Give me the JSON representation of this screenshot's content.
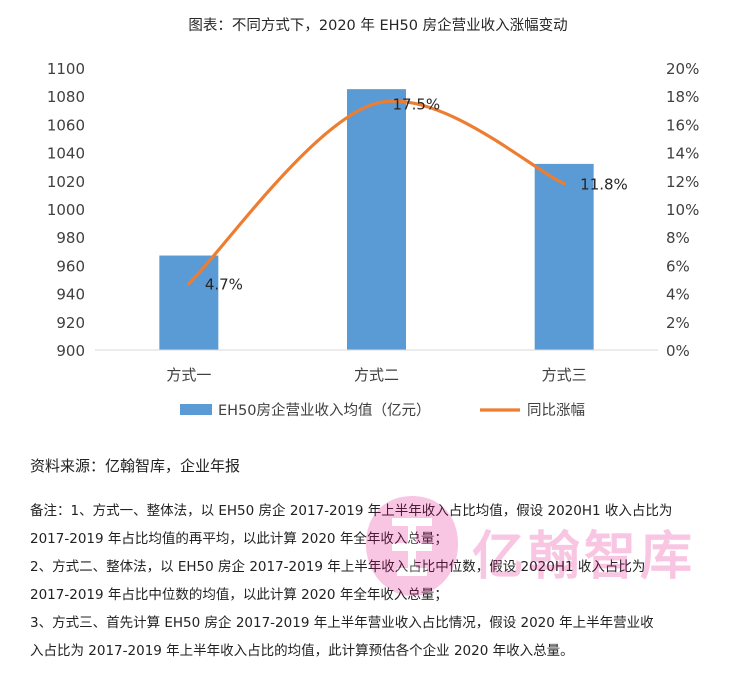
{
  "chart_data": {
    "type": "bar",
    "title": "图表：不同方式下，2020 年 EH50 房企营业收入涨幅变动",
    "categories": [
      "方式一",
      "方式二",
      "方式三"
    ],
    "series": [
      {
        "name": "EH50房企营业收入均值（亿元）",
        "type": "bar",
        "axis": "left",
        "values": [
          967,
          1085,
          1032
        ],
        "color": "#5b9bd5"
      },
      {
        "name": "同比涨幅",
        "type": "line",
        "axis": "right",
        "values": [
          4.7,
          17.5,
          11.8
        ],
        "labels": [
          "4.7%",
          "17.5%",
          "11.8%"
        ],
        "color": "#ed7d31"
      }
    ],
    "y_left": {
      "min": 900,
      "max": 1100,
      "step": 20,
      "ticks": [
        "900",
        "920",
        "940",
        "960",
        "980",
        "1000",
        "1020",
        "1040",
        "1060",
        "1080",
        "1100"
      ]
    },
    "y_right": {
      "min": 0,
      "max": 20,
      "step": 2,
      "ticks": [
        "0%",
        "2%",
        "4%",
        "6%",
        "8%",
        "10%",
        "12%",
        "14%",
        "16%",
        "18%",
        "20%"
      ]
    },
    "grid": false,
    "legend_position": "bottom"
  },
  "source": "资料来源：亿翰智库，企业年报",
  "notes": [
    "备注：1、方式一、整体法，以 EH50 房企 2017-2019 年上半年收入占比均值，假设 2020H1 收入占比为",
    "2017-2019 年占比均值的再平均，以此计算 2020 年全年收入总量；",
    "2、方式二、整体法，以 EH50 房企 2017-2019 年上半年收入占比中位数，假设 2020H1 收入占比为",
    "2017-2019 年占比中位数的均值，以此计算 2020 年全年收入总量；",
    "3、方式三、首先计算 EH50 房企 2017-2019 年上半年营业收入占比情况，假设 2020 年上半年营业收",
    "入占比为 2017-2019 年上半年收入占比的均值，此计算预估各个企业 2020 年收入总量。"
  ],
  "watermark": {
    "text": "亿翰智库",
    "color": "#e4007f"
  }
}
